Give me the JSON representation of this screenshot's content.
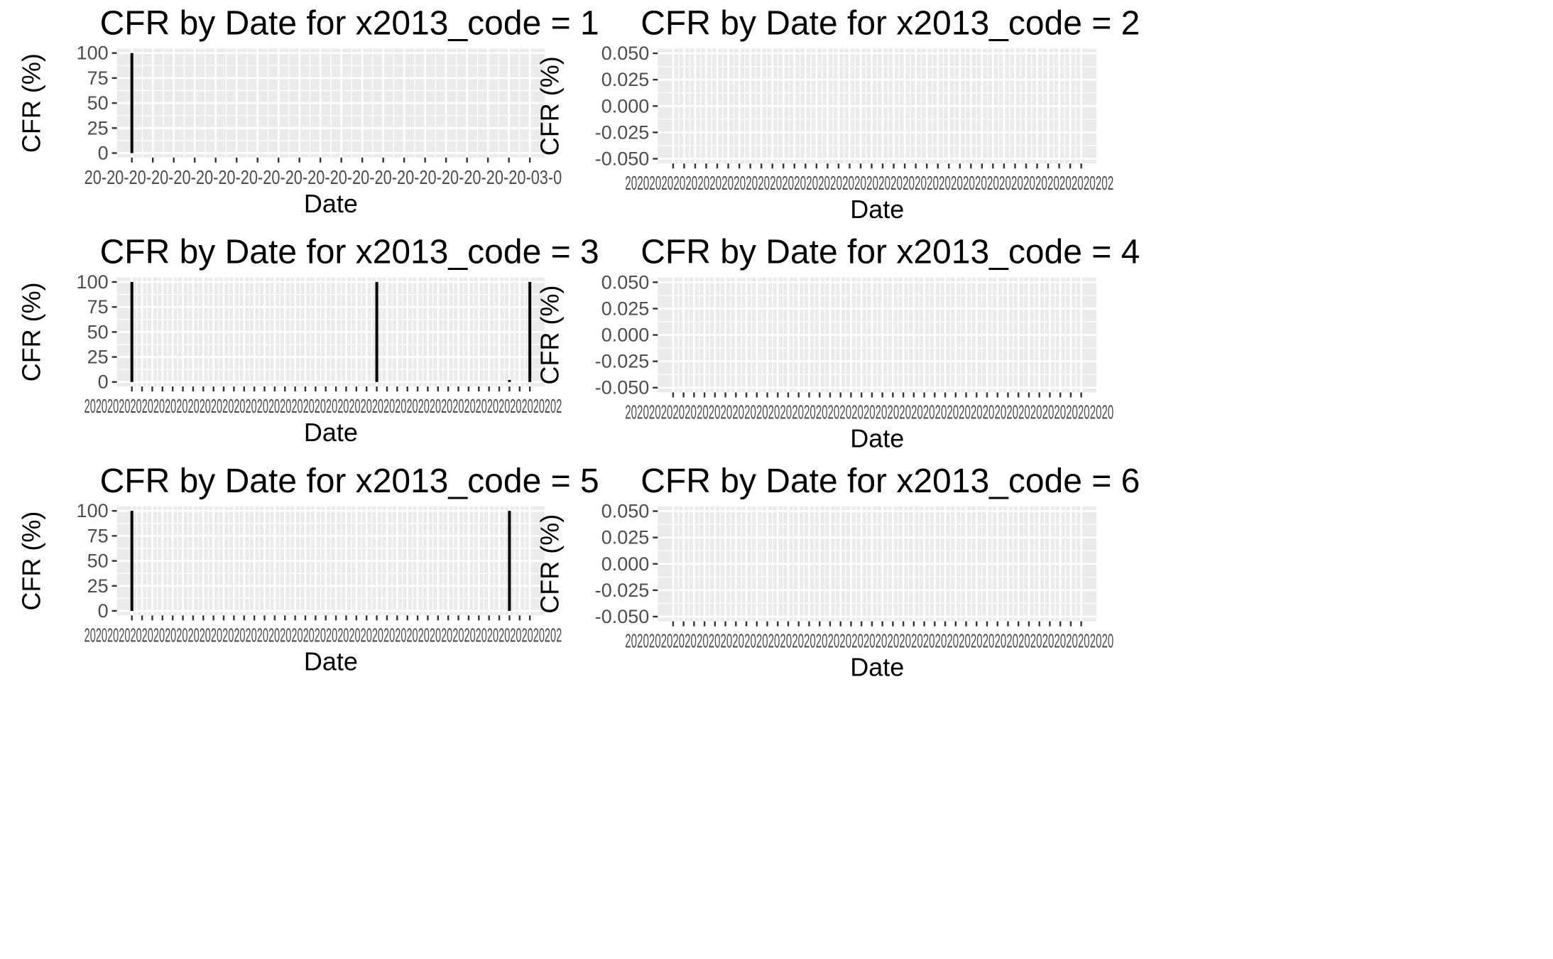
{
  "figure": {
    "background": "#ffffff",
    "panel_bg": "#ebebeb",
    "grid_color": "#ffffff",
    "mark_color": "#000000",
    "tick_color": "#333333",
    "text_color": "#000000",
    "tick_text_color": "#4d4d4d"
  },
  "chart_data": [
    {
      "type": "bar",
      "title": "CFR by Date for x2013_code = 1",
      "xlabel": "Date",
      "ylabel": "CFR (%)",
      "ylim": [
        0,
        100
      ],
      "yticks": [
        "0",
        "25",
        "50",
        "75",
        "100"
      ],
      "x_tick_count": 20,
      "x_tick_labels_overlapping": "20-20-20-20-20-20-20-20-20-20-20-20-20-20-20-20-20-20-20-20-03-0",
      "grid": true,
      "series": [
        {
          "x_index": [
            0
          ],
          "values": [
            100
          ]
        }
      ]
    },
    {
      "type": "bar",
      "title": "CFR by Date for x2013_code = 2",
      "xlabel": "Date",
      "ylabel": "CFR (%)",
      "ylim": [
        -0.05,
        0.05
      ],
      "yticks": [
        "-0.050",
        "-0.025",
        "0.000",
        "0.025",
        "0.050"
      ],
      "x_tick_count": 38,
      "x_tick_labels_overlapping": "202020202020202020202020202020202020202020202020202020202020202020202020202020202",
      "grid": true,
      "series": [
        {
          "x_index": [],
          "values": []
        }
      ]
    },
    {
      "type": "bar",
      "title": "CFR by Date for x2013_code = 3",
      "xlabel": "Date",
      "ylabel": "CFR (%)",
      "ylim": [
        0,
        100
      ],
      "yticks": [
        "0",
        "25",
        "50",
        "75",
        "100"
      ],
      "x_tick_count": 40,
      "x_tick_labels_overlapping": "20202020202020202020202020202020202020202020202020202020202020202020202020202020202",
      "grid": true,
      "series": [
        {
          "x_index": [
            0,
            24,
            37,
            39
          ],
          "values": [
            100,
            100,
            2,
            100
          ]
        }
      ]
    },
    {
      "type": "bar",
      "title": "CFR by Date for x2013_code = 4",
      "xlabel": "Date",
      "ylabel": "CFR (%)",
      "ylim": [
        -0.05,
        0.05
      ],
      "yticks": [
        "-0.050",
        "-0.025",
        "0.000",
        "0.025",
        "0.050"
      ],
      "x_tick_count": 40,
      "x_tick_labels_overlapping": "2020202020202020202020202020202020202020202020202020202020202020202020202020202020",
      "grid": true,
      "series": [
        {
          "x_index": [],
          "values": []
        }
      ]
    },
    {
      "type": "bar",
      "title": "CFR by Date for x2013_code = 5",
      "xlabel": "Date",
      "ylabel": "CFR (%)",
      "ylim": [
        0,
        100
      ],
      "yticks": [
        "0",
        "25",
        "50",
        "75",
        "100"
      ],
      "x_tick_count": 40,
      "x_tick_labels_overlapping": "20202020202020202020202020202020202020202020202020202020202020202020202020202020202",
      "grid": true,
      "series": [
        {
          "x_index": [
            0,
            37
          ],
          "values": [
            100,
            100
          ]
        }
      ]
    },
    {
      "type": "bar",
      "title": "CFR by Date for x2013_code = 6",
      "xlabel": "Date",
      "ylabel": "CFR (%)",
      "ylim": [
        -0.05,
        0.05
      ],
      "yticks": [
        "-0.050",
        "-0.025",
        "0.000",
        "0.025",
        "0.050"
      ],
      "x_tick_count": 40,
      "x_tick_labels_overlapping": "2020202020202020202020202020202020202020202020202020202020202020202020202020202020",
      "grid": true,
      "series": [
        {
          "x_index": [],
          "values": []
        }
      ]
    }
  ]
}
